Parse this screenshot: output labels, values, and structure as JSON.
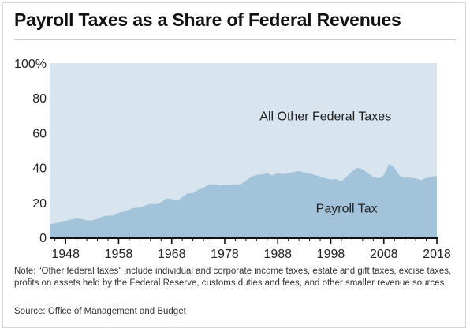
{
  "title": "Payroll Taxes as a Share of Federal Revenues",
  "note": "Note: “Other federal taxes” include individual and corporate income taxes, estate and gift taxes, excise taxes, profits on assets held by the Federal Reserve, customs duties and fees, and other smaller revenue sources.",
  "source": "Source: Office of Management and Budget",
  "colors": {
    "payroll": "#a3c3db",
    "other": "#d8e5ef",
    "axis": "#111111"
  },
  "chart_data": {
    "type": "area",
    "title": "Payroll Taxes as a Share of Federal Revenues",
    "xlabel": "",
    "ylabel": "",
    "xlim": [
      1945,
      2018
    ],
    "ylim": [
      0,
      100
    ],
    "y_ticks": [
      0,
      20,
      40,
      60,
      80,
      100
    ],
    "y_tick_labels": [
      "0",
      "20",
      "40",
      "60",
      "80",
      "100%"
    ],
    "x_ticks": [
      1948,
      1958,
      1968,
      1978,
      1988,
      1998,
      2008,
      2018
    ],
    "x_tick_labels": [
      "1948",
      "1958",
      "1968",
      "1978",
      "1988",
      "1998",
      "2008",
      "2018"
    ],
    "grid": false,
    "area_labels": {
      "top": "All Other Federal Taxes",
      "bottom": "Payroll Tax"
    },
    "x": [
      1945,
      1946,
      1947,
      1948,
      1949,
      1950,
      1951,
      1952,
      1953,
      1954,
      1955,
      1956,
      1957,
      1958,
      1959,
      1960,
      1961,
      1962,
      1963,
      1964,
      1965,
      1966,
      1967,
      1968,
      1969,
      1970,
      1971,
      1972,
      1973,
      1974,
      1975,
      1976,
      1977,
      1978,
      1979,
      1980,
      1981,
      1982,
      1983,
      1984,
      1985,
      1986,
      1987,
      1988,
      1989,
      1990,
      1991,
      1992,
      1993,
      1994,
      1995,
      1996,
      1997,
      1998,
      1999,
      2000,
      2001,
      2002,
      2003,
      2004,
      2005,
      2006,
      2007,
      2008,
      2009,
      2010,
      2011,
      2012,
      2013,
      2014,
      2015,
      2016,
      2017,
      2018
    ],
    "series": [
      {
        "name": "Payroll Tax",
        "values": [
          7.6,
          7.9,
          8.9,
          9.5,
          10.2,
          11.0,
          10.5,
          9.7,
          9.8,
          10.6,
          12.0,
          12.5,
          12.5,
          14.1,
          14.8,
          15.9,
          17.0,
          17.1,
          18.3,
          19.2,
          19.0,
          20.0,
          22.3,
          22.2,
          20.9,
          23.0,
          25.3,
          25.4,
          27.3,
          28.5,
          30.3,
          30.5,
          29.9,
          30.3,
          30.0,
          30.5,
          30.5,
          32.6,
          34.8,
          35.9,
          36.1,
          36.9,
          35.5,
          36.8,
          36.3,
          36.8,
          37.5,
          38.0,
          37.3,
          36.7,
          35.8,
          34.9,
          33.9,
          33.2,
          33.5,
          32.2,
          34.9,
          37.8,
          40.0,
          39.0,
          36.9,
          34.8,
          33.9,
          35.7,
          42.3,
          40.0,
          35.3,
          34.5,
          34.2,
          33.9,
          32.8,
          34.1,
          35.0,
          35.2
        ]
      }
    ]
  }
}
